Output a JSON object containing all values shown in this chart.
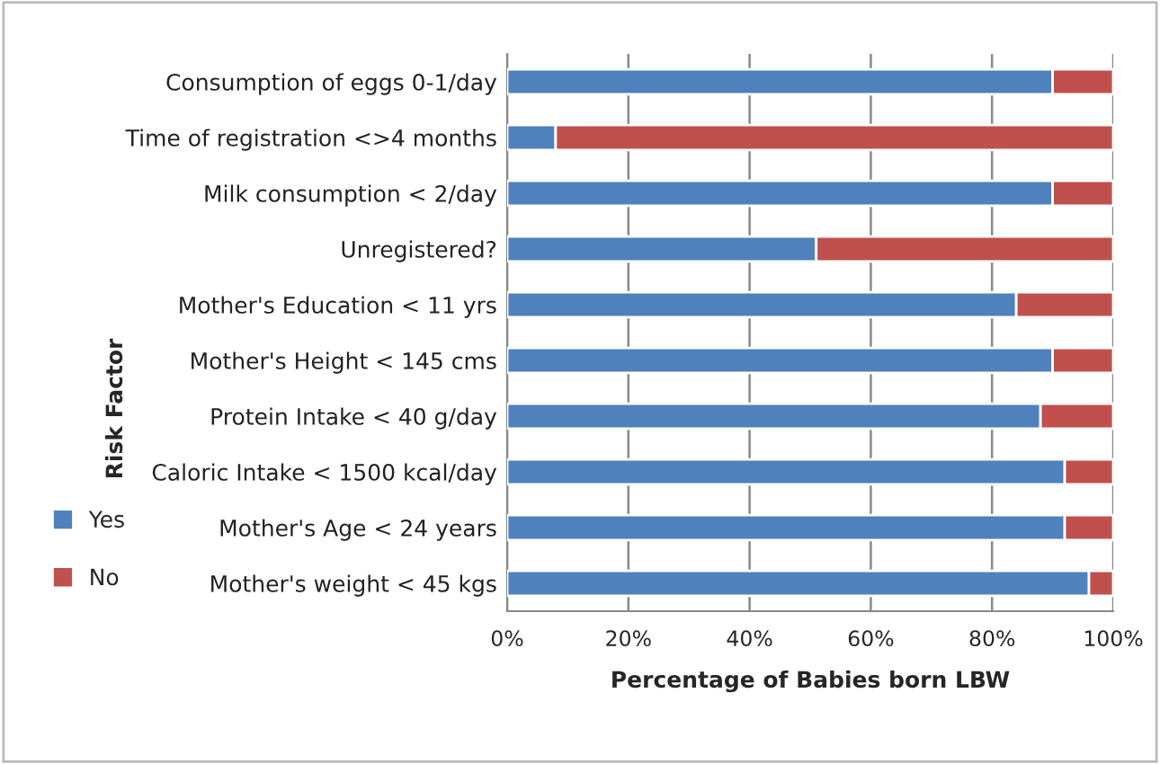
{
  "chart_data": {
    "type": "bar",
    "orientation": "horizontal",
    "stacked": true,
    "xlabel": "Percentage of Babies born LBW",
    "ylabel": "Risk Factor",
    "categories": [
      "Consumption of eggs 0-1/day",
      "Time of registration <>4 months",
      "Milk consumption < 2/day",
      "Unregistered?",
      "Mother's Education < 11 yrs",
      "Mother's Height < 145 cms",
      "Protein Intake < 40 g/day",
      "Caloric Intake < 1500 kcal/day",
      "Mother's Age < 24 years",
      "Mother's weight < 45 kgs"
    ],
    "series": [
      {
        "name": "Yes",
        "color": "#4f81bd",
        "values": [
          90,
          8,
          90,
          51,
          84,
          90,
          88,
          92,
          92,
          96
        ]
      },
      {
        "name": "No",
        "color": "#c0504d",
        "values": [
          10,
          92,
          10,
          49,
          16,
          10,
          12,
          8,
          8,
          4
        ]
      }
    ],
    "xlim": [
      0,
      100
    ],
    "xticks": [
      {
        "value": 0,
        "label": "0%"
      },
      {
        "value": 20,
        "label": "20%"
      },
      {
        "value": 40,
        "label": "40%"
      },
      {
        "value": 60,
        "label": "60%"
      },
      {
        "value": 80,
        "label": "80%"
      },
      {
        "value": 100,
        "label": "100%"
      }
    ],
    "grid": "x",
    "legend": "left"
  }
}
